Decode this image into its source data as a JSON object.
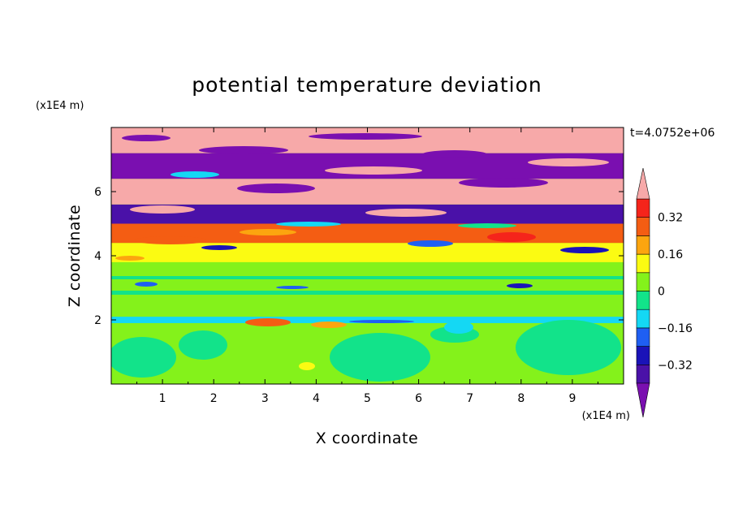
{
  "chart_data": {
    "type": "heatmap",
    "title": "potential temperature deviation",
    "xlabel": "X coordinate",
    "ylabel": "Z coordinate",
    "x_unit": "(x1E4 m)",
    "y_unit": "(x1E4 m)",
    "time_stamp": "t=4.0752e+06",
    "xlim": [
      0,
      10
    ],
    "ylim": [
      0,
      8
    ],
    "x_ticks": [
      1,
      2,
      3,
      4,
      5,
      6,
      7,
      8,
      9
    ],
    "x_tick_labels": [
      "1",
      "2",
      "3",
      "4",
      "5",
      "6",
      "7",
      "8",
      "9"
    ],
    "y_ticks": [
      2,
      4,
      6
    ],
    "y_tick_labels": [
      "2",
      "4",
      "6"
    ],
    "colorbar": {
      "extend": "both",
      "levels": [
        -0.4,
        -0.32,
        -0.24,
        -0.16,
        -0.08,
        0,
        0.08,
        0.16,
        0.24,
        0.32,
        0.4
      ],
      "colors": [
        "#7a0fb0",
        "#4a11a8",
        "#1a13b8",
        "#1f5ff2",
        "#14d8f4",
        "#12e38a",
        "#84f21b",
        "#fbfb12",
        "#fca50f",
        "#f45d13",
        "#f5241b",
        "#f7a9a9"
      ],
      "labels": [
        {
          "value": -0.32,
          "text": "−0.32"
        },
        {
          "value": -0.16,
          "text": "−0.16"
        },
        {
          "value": 0,
          "text": "0"
        },
        {
          "value": 0.16,
          "text": "0.16"
        },
        {
          "value": 0.32,
          "text": "0.32"
        }
      ]
    },
    "field_bands": [
      {
        "z": [
          0.0,
          1.9
        ],
        "value": 0.03
      },
      {
        "z": [
          1.9,
          2.1
        ],
        "value": -0.1
      },
      {
        "z": [
          2.1,
          3.8
        ],
        "value": 0.02
      },
      {
        "z": [
          3.8,
          4.4
        ],
        "value": 0.15
      },
      {
        "z": [
          4.4,
          5.0
        ],
        "value": 0.3
      },
      {
        "z": [
          5.0,
          5.6
        ],
        "value": -0.35
      },
      {
        "z": [
          5.6,
          6.4
        ],
        "value": 0.45
      },
      {
        "z": [
          6.4,
          7.2
        ],
        "value": -0.45
      },
      {
        "z": [
          7.2,
          8.0
        ],
        "value": 0.45
      }
    ]
  }
}
